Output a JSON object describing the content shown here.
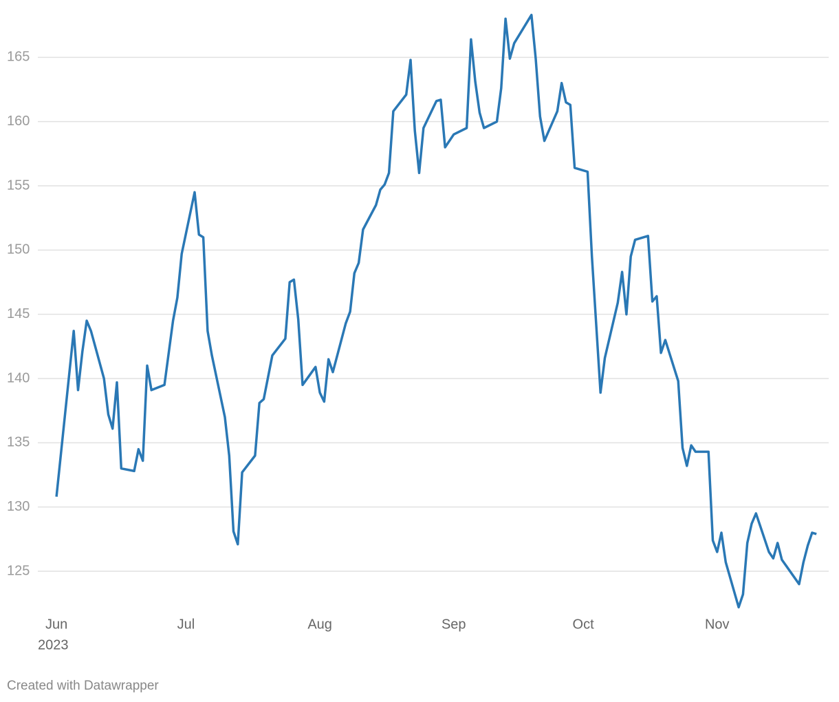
{
  "chart_data": {
    "type": "line",
    "color": "#2a78b5",
    "grid": true,
    "x": [
      0,
      4,
      5,
      6,
      7,
      8,
      11,
      12,
      13,
      14,
      15,
      18,
      19,
      20,
      21,
      22,
      25,
      27,
      28,
      29,
      32,
      33,
      34,
      35,
      36,
      39,
      40,
      41,
      42,
      43,
      46,
      47,
      48,
      50,
      53,
      54,
      55,
      56,
      57,
      60,
      61,
      62,
      63,
      64,
      67,
      68,
      69,
      70,
      71,
      74,
      75,
      76,
      77,
      78,
      81,
      82,
      83,
      84,
      85,
      88,
      89,
      90,
      92,
      95,
      96,
      97,
      98,
      99,
      102,
      103,
      104,
      105,
      106,
      110,
      111,
      112,
      113,
      116,
      117,
      118,
      119,
      120,
      123,
      124,
      126,
      127,
      130,
      131,
      132,
      133,
      134,
      137,
      138,
      139,
      140,
      141,
      144,
      145,
      146,
      147,
      148,
      151,
      152,
      153,
      154,
      155,
      158,
      159,
      160,
      161,
      162,
      165,
      166,
      167,
      168,
      172,
      173,
      174,
      175,
      176
    ],
    "values": [
      130.8,
      143.7,
      139.1,
      142.1,
      144.5,
      143.7,
      140.0,
      137.2,
      136.1,
      139.7,
      133.0,
      132.8,
      134.5,
      133.6,
      141.0,
      139.1,
      139.5,
      144.5,
      146.3,
      149.7,
      154.5,
      151.2,
      151.0,
      143.7,
      141.8,
      137.0,
      134.0,
      128.1,
      127.1,
      132.7,
      134.0,
      138.1,
      138.4,
      141.8,
      143.1,
      147.5,
      147.7,
      144.6,
      139.5,
      140.9,
      138.9,
      138.2,
      141.5,
      140.5,
      144.3,
      145.2,
      148.2,
      149.0,
      151.6,
      153.5,
      154.7,
      155.1,
      156.0,
      160.8,
      162.1,
      164.8,
      159.3,
      156.0,
      159.5,
      161.6,
      161.7,
      158.0,
      159.0,
      159.5,
      166.4,
      163.1,
      160.7,
      159.5,
      160.0,
      162.6,
      168.0,
      164.9,
      166.1,
      168.3,
      164.9,
      160.4,
      158.5,
      160.8,
      163.0,
      161.5,
      161.3,
      156.4,
      156.1,
      149.5,
      138.9,
      141.6,
      145.9,
      148.3,
      145.0,
      149.5,
      150.8,
      151.1,
      146.0,
      146.4,
      142.0,
      143.0,
      139.8,
      134.6,
      133.2,
      134.8,
      134.3,
      134.3,
      127.4,
      126.5,
      128.0,
      125.7,
      122.2,
      123.2,
      127.2,
      128.7,
      129.5,
      126.5,
      126.0,
      127.2,
      125.9,
      124.0,
      125.7,
      127.0,
      128.0,
      127.9
    ],
    "xlim": [
      -4,
      179
    ],
    "xticks": [
      {
        "value": 0,
        "label": "Jun"
      },
      {
        "value": 30,
        "label": "Jul"
      },
      {
        "value": 61,
        "label": "Aug"
      },
      {
        "value": 92,
        "label": "Sep"
      },
      {
        "value": 122,
        "label": "Oct"
      },
      {
        "value": 153,
        "label": "Nov"
      }
    ],
    "year_label": "2023",
    "ylim": [
      122,
      168.5
    ],
    "yticks": [
      125,
      130,
      135,
      140,
      145,
      150,
      155,
      160,
      165
    ],
    "source": "Created with Datawrapper"
  }
}
